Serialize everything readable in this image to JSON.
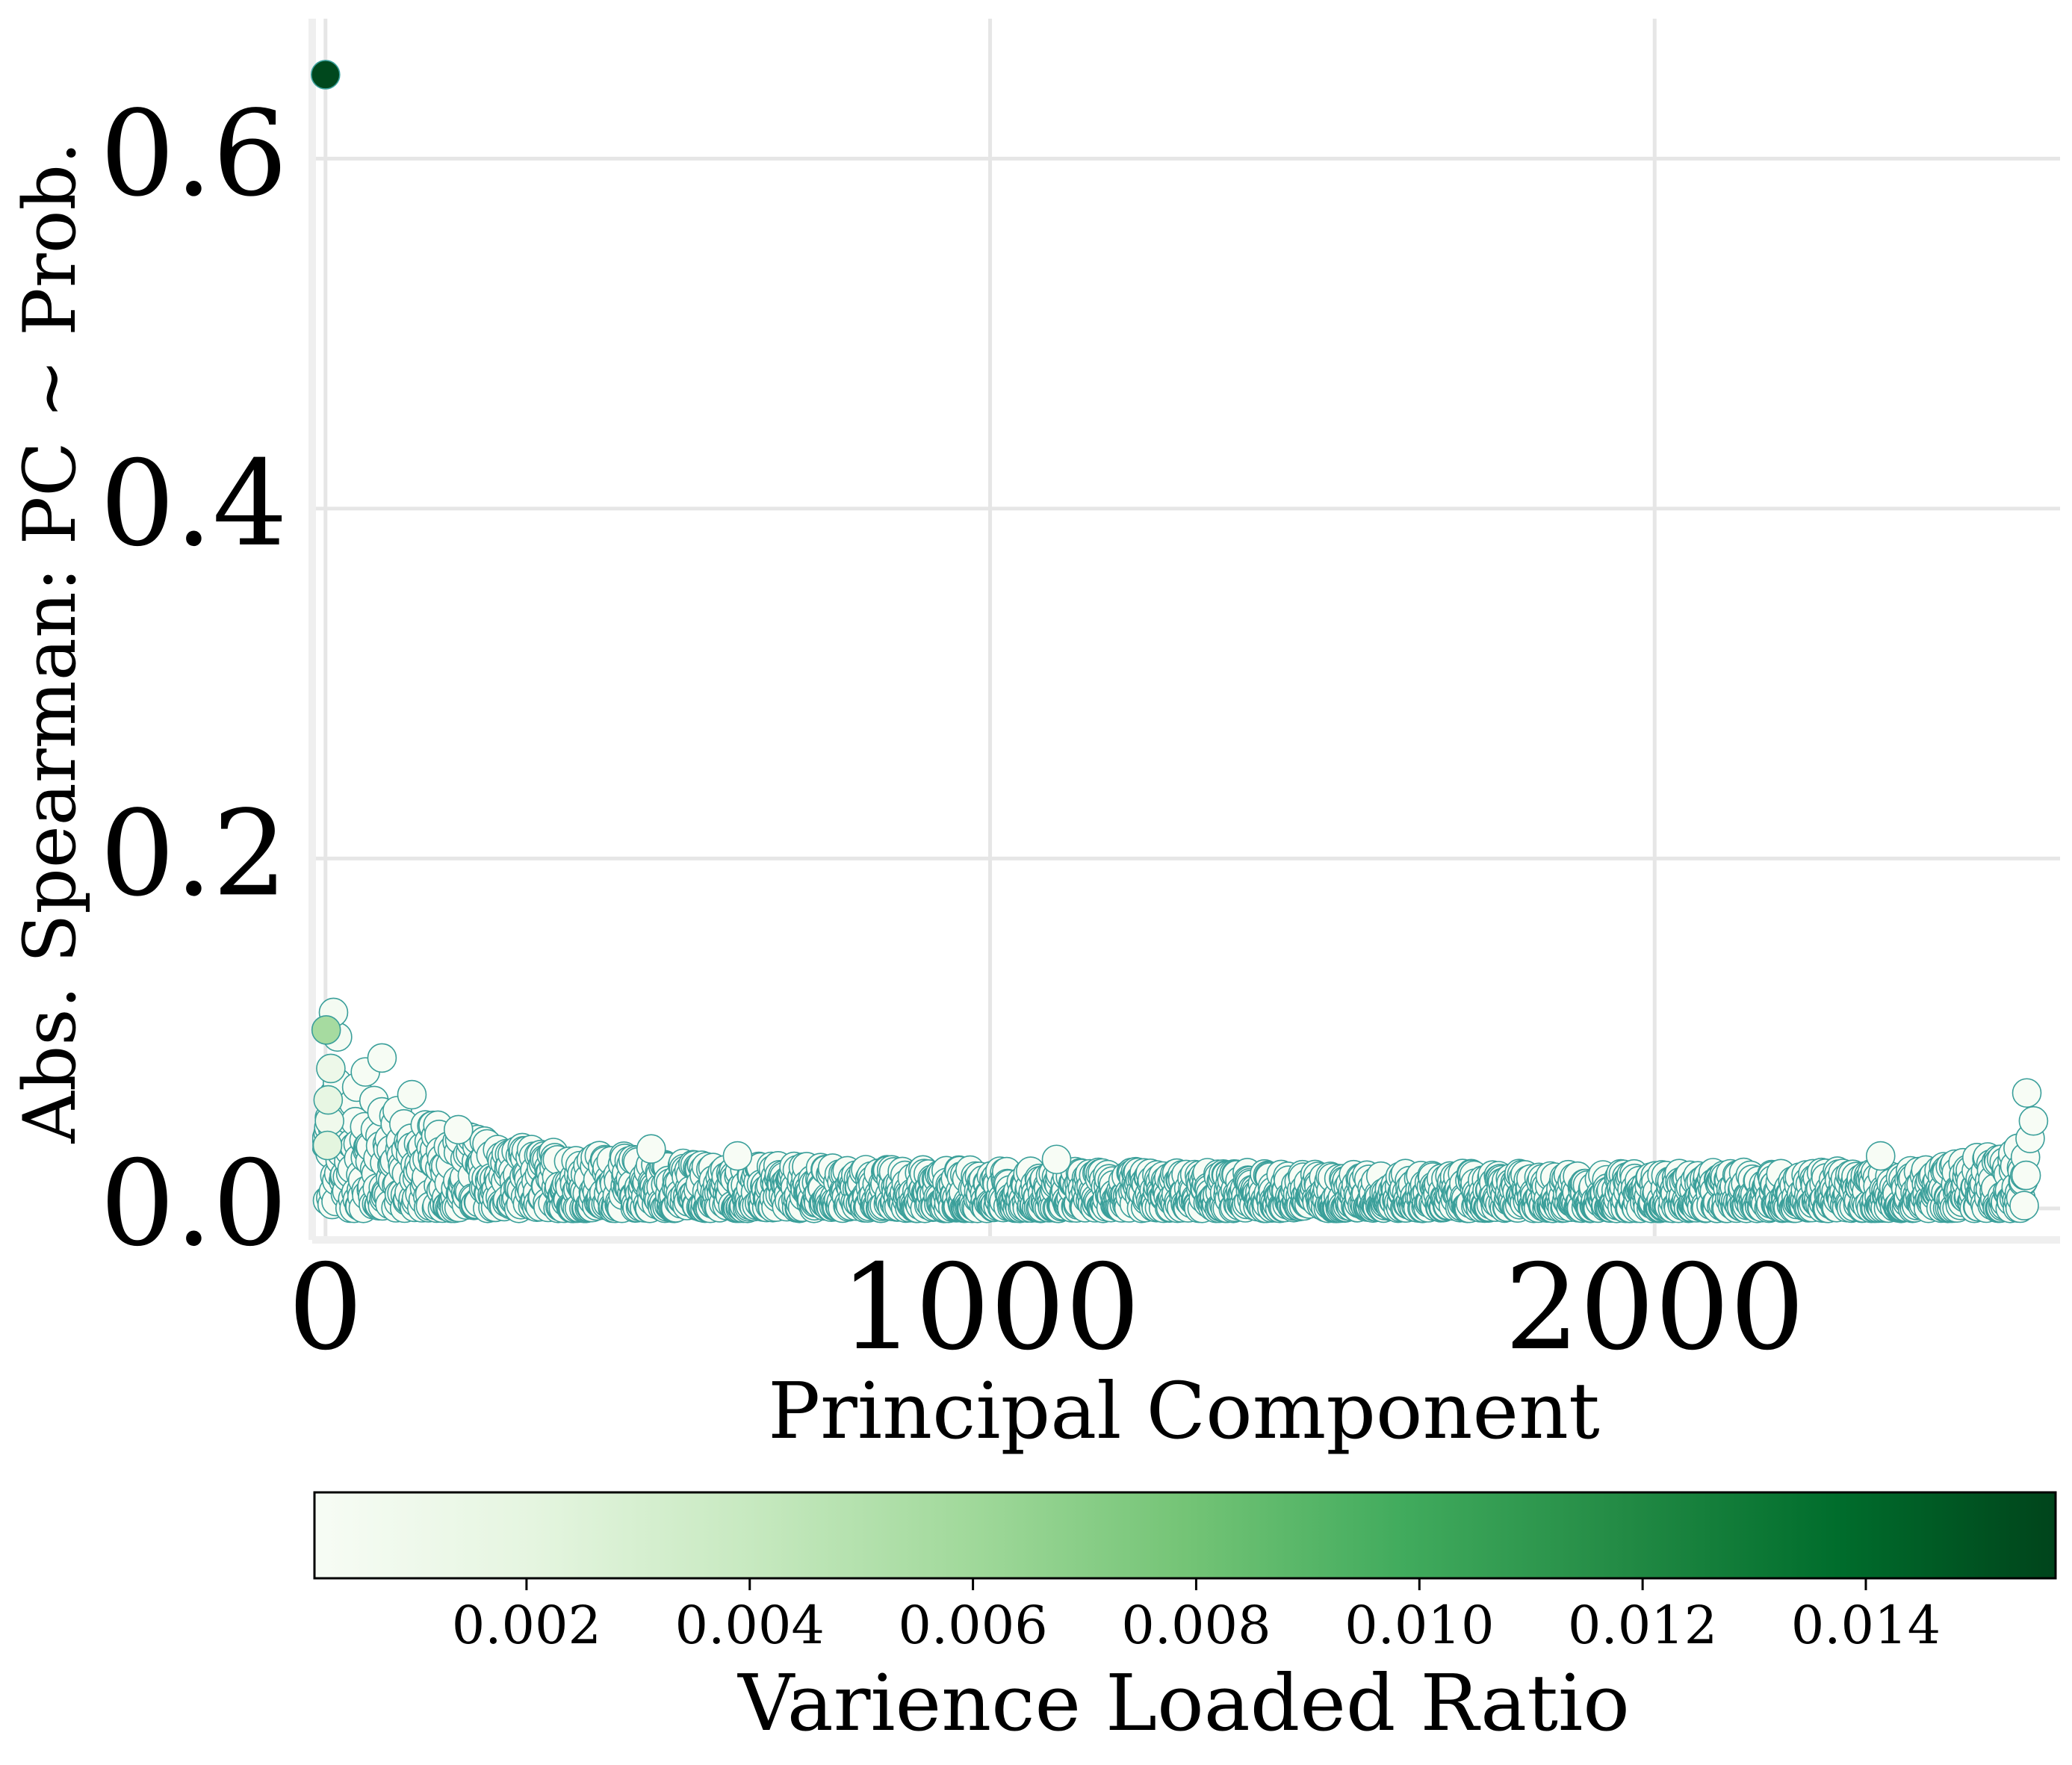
{
  "chart_data": {
    "type": "scatter",
    "title": "",
    "xlabel": "Principal Component",
    "ylabel": "Abs. Spearman: PC ~ Prob.",
    "xlim": [
      -20,
      2610
    ],
    "ylim": [
      -0.018,
      0.68
    ],
    "xticks": [
      0,
      1000,
      2000
    ],
    "xtick_labels": [
      "0",
      "1000",
      "2000"
    ],
    "yticks": [
      0.0,
      0.2,
      0.4,
      0.6
    ],
    "ytick_labels": [
      "0.0",
      "0.2",
      "0.4",
      "0.6"
    ],
    "grid": true,
    "n_components": 2560,
    "highlight_points": [
      {
        "x": 0,
        "y": 0.648,
        "variance_ratio": 0.0155
      },
      {
        "x": 1,
        "y": 0.102,
        "variance_ratio": 0.0057
      },
      {
        "x": 12,
        "y": 0.112,
        "variance_ratio": 0.0004
      },
      {
        "x": 8,
        "y": 0.08,
        "variance_ratio": 0.0012
      },
      {
        "x": 4,
        "y": 0.062,
        "variance_ratio": 0.0018
      },
      {
        "x": 3,
        "y": 0.036,
        "variance_ratio": 0.0021
      },
      {
        "x": 6,
        "y": 0.05,
        "variance_ratio": 0.0009
      },
      {
        "x": 18,
        "y": 0.098,
        "variance_ratio": 0.0003
      },
      {
        "x": 85,
        "y": 0.086,
        "variance_ratio": 0.0002
      },
      {
        "x": 60,
        "y": 0.078,
        "variance_ratio": 0.0002
      },
      {
        "x": 130,
        "y": 0.065,
        "variance_ratio": 0.0002
      },
      {
        "x": 200,
        "y": 0.045,
        "variance_ratio": 0.0001
      },
      {
        "x": 490,
        "y": 0.034,
        "variance_ratio": 0.0001
      },
      {
        "x": 620,
        "y": 0.03,
        "variance_ratio": 0.0001
      },
      {
        "x": 1100,
        "y": 0.028,
        "variance_ratio": 0.0001
      },
      {
        "x": 2340,
        "y": 0.03,
        "variance_ratio": 0.0001
      },
      {
        "x": 2560,
        "y": 0.066,
        "variance_ratio": 0.0001
      },
      {
        "x": 2570,
        "y": 0.05,
        "variance_ratio": 0.0001
      },
      {
        "x": 2565,
        "y": 0.04,
        "variance_ratio": 0.0001
      }
    ],
    "bulk_trend": [
      {
        "x": 20,
        "y_max": 0.075
      },
      {
        "x": 150,
        "y_max": 0.05
      },
      {
        "x": 300,
        "y_max": 0.035
      },
      {
        "x": 600,
        "y_max": 0.025
      },
      {
        "x": 1000,
        "y_max": 0.022
      },
      {
        "x": 1500,
        "y_max": 0.02
      },
      {
        "x": 2000,
        "y_max": 0.02
      },
      {
        "x": 2400,
        "y_max": 0.022
      },
      {
        "x": 2540,
        "y_max": 0.035
      }
    ],
    "colorbar": {
      "label": "Varience Loaded Ratio",
      "range": [
        0.0001,
        0.0157
      ],
      "ticks": [
        0.002,
        0.004,
        0.006,
        0.008,
        0.01,
        0.012,
        0.014
      ],
      "tick_labels": [
        "0.002",
        "0.004",
        "0.006",
        "0.008",
        "0.010",
        "0.012",
        "0.014"
      ],
      "colormap": "Greens",
      "colors": [
        "#f7fcf5",
        "#e5f5e0",
        "#c7e9c0",
        "#a1d99b",
        "#74c476",
        "#41ab5d",
        "#238b45",
        "#006d2c",
        "#00441b"
      ],
      "orientation": "horizontal",
      "placement": "bottom"
    },
    "marker_edge_color": "#3a9f9a",
    "grid_color": "#e6e6e6"
  }
}
